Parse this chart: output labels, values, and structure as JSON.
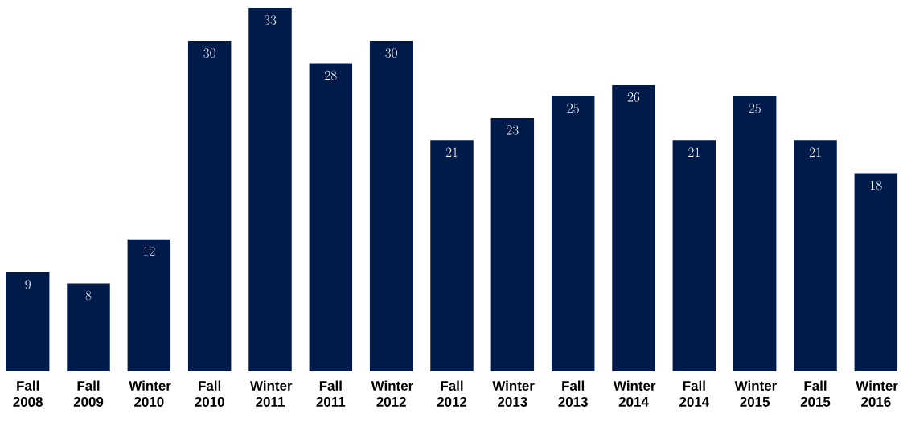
{
  "chart_data": {
    "type": "bar",
    "categories": [
      "Fall 2008",
      "Fall 2009",
      "Winter 2010",
      "Fall 2010",
      "Winter 2011",
      "Fall 2011",
      "Winter 2012",
      "Fall 2012",
      "Winter 2013",
      "Fall 2013",
      "Winter 2014",
      "Fall 2014",
      "Winter 2015",
      "Fall 2015",
      "Winter 2016"
    ],
    "values": [
      9,
      8,
      12,
      30,
      33,
      28,
      30,
      21,
      23,
      25,
      26,
      21,
      25,
      21,
      18
    ],
    "color": "#001a4a",
    "data_labels": true
  }
}
